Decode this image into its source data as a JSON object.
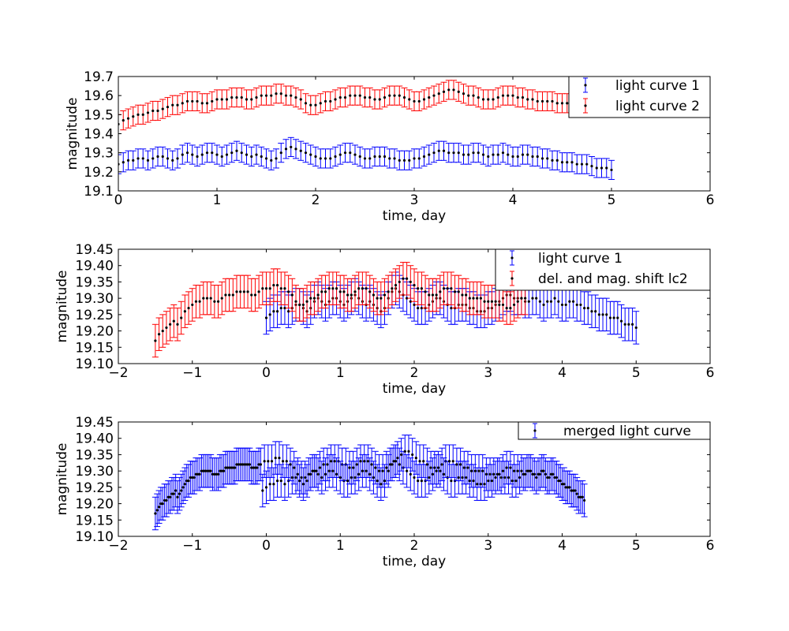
{
  "chart_data": [
    {
      "type": "scatter",
      "title": "",
      "xlabel": "time, day",
      "ylabel": "magnitude",
      "xlim": [
        0,
        6
      ],
      "ylim": [
        19.1,
        19.7
      ],
      "xticks": [
        "0",
        "1",
        "2",
        "3",
        "4",
        "5",
        "6"
      ],
      "yticks": [
        "19.1",
        "19.2",
        "19.3",
        "19.4",
        "19.5",
        "19.6",
        "19.7"
      ],
      "legend": "top-right",
      "grid": false,
      "series": [
        {
          "name": "light curve 1",
          "color": "#0000ff",
          "x_start": 0.0,
          "x_step": 0.05,
          "error": 0.05,
          "y": [
            19.24,
            19.25,
            19.26,
            19.26,
            19.27,
            19.27,
            19.26,
            19.27,
            19.28,
            19.28,
            19.27,
            19.26,
            19.27,
            19.29,
            19.3,
            19.29,
            19.28,
            19.29,
            19.3,
            19.3,
            19.29,
            19.28,
            19.29,
            19.3,
            19.31,
            19.3,
            19.29,
            19.28,
            19.29,
            19.28,
            19.27,
            19.26,
            19.27,
            19.3,
            19.32,
            19.33,
            19.32,
            19.31,
            19.3,
            19.29,
            19.28,
            19.27,
            19.27,
            19.27,
            19.28,
            19.29,
            19.3,
            19.3,
            19.29,
            19.28,
            19.27,
            19.27,
            19.28,
            19.28,
            19.28,
            19.27,
            19.27,
            19.26,
            19.26,
            19.26,
            19.27,
            19.27,
            19.28,
            19.29,
            19.3,
            19.31,
            19.31,
            19.3,
            19.3,
            19.3,
            19.29,
            19.29,
            19.3,
            19.3,
            19.29,
            19.28,
            19.29,
            19.29,
            19.3,
            19.29,
            19.28,
            19.28,
            19.29,
            19.29,
            19.28,
            19.28,
            19.27,
            19.27,
            19.26,
            19.26,
            19.25,
            19.25,
            19.25,
            19.24,
            19.24,
            19.24,
            19.23,
            19.22,
            19.22,
            19.22,
            19.21
          ]
        },
        {
          "name": "light curve 2",
          "color": "#ff0000",
          "x_start": 0.0,
          "x_step": 0.05,
          "error": 0.05,
          "y": [
            19.45,
            19.47,
            19.48,
            19.49,
            19.5,
            19.5,
            19.51,
            19.52,
            19.52,
            19.53,
            19.54,
            19.55,
            19.55,
            19.56,
            19.57,
            19.57,
            19.57,
            19.56,
            19.56,
            19.57,
            19.58,
            19.58,
            19.58,
            19.59,
            19.59,
            19.59,
            19.58,
            19.58,
            19.59,
            19.6,
            19.6,
            19.6,
            19.61,
            19.61,
            19.6,
            19.6,
            19.59,
            19.58,
            19.56,
            19.55,
            19.55,
            19.56,
            19.57,
            19.57,
            19.58,
            19.59,
            19.59,
            19.6,
            19.6,
            19.6,
            19.59,
            19.59,
            19.58,
            19.58,
            19.59,
            19.6,
            19.6,
            19.6,
            19.59,
            19.58,
            19.57,
            19.57,
            19.58,
            19.59,
            19.6,
            19.61,
            19.62,
            19.63,
            19.63,
            19.62,
            19.61,
            19.6,
            19.6,
            19.59,
            19.58,
            19.58,
            19.58,
            19.59,
            19.6,
            19.6,
            19.6,
            19.59,
            19.59,
            19.58,
            19.58,
            19.57,
            19.57,
            19.57,
            19.57,
            19.56,
            19.56,
            19.56,
            19.56
          ]
        }
      ]
    },
    {
      "type": "scatter",
      "title": "",
      "xlabel": "time, day",
      "ylabel": "magnitude",
      "xlim": [
        -2,
        6
      ],
      "ylim": [
        19.1,
        19.45
      ],
      "xticks": [
        "−2",
        "−1",
        "0",
        "1",
        "2",
        "3",
        "4",
        "5",
        "6"
      ],
      "yticks": [
        "19.10",
        "19.15",
        "19.20",
        "19.25",
        "19.30",
        "19.35",
        "19.40",
        "19.45"
      ],
      "legend": "top-right",
      "grid": false,
      "series": [
        {
          "name": "light curve 1",
          "color": "#0000ff",
          "x_start": 0.0,
          "x_step": 0.05,
          "error": 0.05,
          "y": [
            19.24,
            19.25,
            19.26,
            19.26,
            19.27,
            19.27,
            19.26,
            19.27,
            19.28,
            19.28,
            19.27,
            19.26,
            19.27,
            19.29,
            19.3,
            19.29,
            19.28,
            19.29,
            19.3,
            19.3,
            19.29,
            19.28,
            19.29,
            19.3,
            19.31,
            19.3,
            19.29,
            19.28,
            19.29,
            19.28,
            19.27,
            19.26,
            19.27,
            19.3,
            19.32,
            19.33,
            19.32,
            19.31,
            19.3,
            19.29,
            19.28,
            19.27,
            19.27,
            19.27,
            19.28,
            19.29,
            19.3,
            19.3,
            19.29,
            19.28,
            19.27,
            19.27,
            19.28,
            19.28,
            19.28,
            19.27,
            19.27,
            19.26,
            19.26,
            19.26,
            19.27,
            19.27,
            19.28,
            19.29,
            19.3,
            19.31,
            19.31,
            19.3,
            19.3,
            19.3,
            19.29,
            19.29,
            19.3,
            19.3,
            19.29,
            19.28,
            19.29,
            19.29,
            19.3,
            19.29,
            19.28,
            19.28,
            19.29,
            19.29,
            19.28,
            19.28,
            19.27,
            19.27,
            19.26,
            19.26,
            19.25,
            19.25,
            19.25,
            19.24,
            19.24,
            19.24,
            19.23,
            19.22,
            19.22,
            19.22,
            19.21
          ]
        },
        {
          "name": "del. and mag. shift lc2",
          "color": "#ff0000",
          "x_start": -1.5,
          "x_step": 0.05,
          "error": 0.05,
          "y": [
            19.17,
            19.19,
            19.2,
            19.21,
            19.22,
            19.23,
            19.22,
            19.24,
            19.26,
            19.27,
            19.28,
            19.29,
            19.29,
            19.3,
            19.3,
            19.3,
            19.29,
            19.29,
            19.3,
            19.31,
            19.31,
            19.31,
            19.32,
            19.32,
            19.32,
            19.32,
            19.31,
            19.31,
            19.32,
            19.33,
            19.33,
            19.33,
            19.34,
            19.34,
            19.33,
            19.33,
            19.32,
            19.31,
            19.29,
            19.28,
            19.28,
            19.29,
            19.3,
            19.3,
            19.31,
            19.32,
            19.32,
            19.33,
            19.33,
            19.33,
            19.32,
            19.32,
            19.31,
            19.31,
            19.32,
            19.33,
            19.33,
            19.33,
            19.32,
            19.31,
            19.3,
            19.3,
            19.31,
            19.32,
            19.33,
            19.34,
            19.35,
            19.36,
            19.36,
            19.35,
            19.34,
            19.33,
            19.33,
            19.32,
            19.31,
            19.31,
            19.31,
            19.32,
            19.33,
            19.33,
            19.33,
            19.32,
            19.32,
            19.31,
            19.31,
            19.3,
            19.3,
            19.3,
            19.3,
            19.29,
            19.29,
            19.29,
            19.29,
            19.28,
            19.28,
            19.27,
            19.27,
            19.28,
            19.29,
            19.3,
            19.3
          ]
        }
      ]
    },
    {
      "type": "scatter",
      "title": "",
      "xlabel": "time, day",
      "ylabel": "magnitude",
      "xlim": [
        -2,
        6
      ],
      "ylim": [
        19.1,
        19.45
      ],
      "xticks": [
        "−2",
        "−1",
        "0",
        "1",
        "2",
        "3",
        "4",
        "5",
        "6"
      ],
      "yticks": [
        "19.10",
        "19.15",
        "19.20",
        "19.25",
        "19.30",
        "19.35",
        "19.40",
        "19.45"
      ],
      "legend": "top-right",
      "grid": false,
      "series": [
        {
          "name": "merged light curve",
          "color": "#0000ff",
          "x_start": -1.5,
          "x_step": 0.025,
          "error": 0.05,
          "y": [
            19.17,
            19.18,
            19.19,
            19.2,
            19.2,
            19.21,
            19.21,
            19.22,
            19.22,
            19.23,
            19.23,
            19.24,
            19.22,
            19.23,
            19.24,
            19.25,
            19.26,
            19.27,
            19.27,
            19.28,
            19.28,
            19.28,
            19.29,
            19.29,
            19.29,
            19.3,
            19.3,
            19.3,
            19.3,
            19.3,
            19.3,
            19.29,
            19.29,
            19.29,
            19.29,
            19.3,
            19.3,
            19.3,
            19.31,
            19.31,
            19.31,
            19.31,
            19.31,
            19.31,
            19.32,
            19.32,
            19.32,
            19.32,
            19.32,
            19.32,
            19.32,
            19.32,
            19.31,
            19.31,
            19.31,
            19.31,
            19.32,
            19.32,
            19.24,
            19.33,
            19.25,
            19.33,
            19.26,
            19.33,
            19.26,
            19.34,
            19.27,
            19.34,
            19.27,
            19.33,
            19.26,
            19.33,
            19.27,
            19.32,
            19.28,
            19.31,
            19.28,
            19.29,
            19.27,
            19.28,
            19.26,
            19.28,
            19.27,
            19.29,
            19.29,
            19.3,
            19.3,
            19.3,
            19.29,
            19.31,
            19.28,
            19.32,
            19.29,
            19.32,
            19.3,
            19.33,
            19.3,
            19.33,
            19.29,
            19.33,
            19.28,
            19.32,
            19.27,
            19.32,
            19.27,
            19.31,
            19.28,
            19.31,
            19.28,
            19.32,
            19.29,
            19.33,
            19.3,
            19.33,
            19.3,
            19.33,
            19.29,
            19.32,
            19.28,
            19.31,
            19.27,
            19.3,
            19.26,
            19.3,
            19.27,
            19.31,
            19.3,
            19.32,
            19.32,
            19.33,
            19.33,
            19.34,
            19.32,
            19.35,
            19.31,
            19.36,
            19.3,
            19.36,
            19.29,
            19.35,
            19.28,
            19.34,
            19.27,
            19.33,
            19.27,
            19.33,
            19.27,
            19.32,
            19.28,
            19.31,
            19.29,
            19.31,
            19.3,
            19.31,
            19.3,
            19.32,
            19.29,
            19.33,
            19.28,
            19.33,
            19.27,
            19.33,
            19.27,
            19.32,
            19.28,
            19.32,
            19.28,
            19.31,
            19.28,
            19.31,
            19.27,
            19.3,
            19.27,
            19.3,
            19.26,
            19.3,
            19.26,
            19.3,
            19.26,
            19.29,
            19.27,
            19.29,
            19.27,
            19.29,
            19.28,
            19.29,
            19.29,
            19.28,
            19.3,
            19.28,
            19.31,
            19.28,
            19.31,
            19.27,
            19.3,
            19.27,
            19.3,
            19.28,
            19.3,
            19.29,
            19.29,
            19.3,
            19.3,
            19.3,
            19.29,
            19.29,
            19.28,
            19.29,
            19.29,
            19.3,
            19.3,
            19.29,
            19.28,
            19.28,
            19.29,
            19.29,
            19.28,
            19.28,
            19.27,
            19.27,
            19.26,
            19.26,
            19.25,
            19.25,
            19.25,
            19.24,
            19.24,
            19.24,
            19.23,
            19.22,
            19.22,
            19.22,
            19.21
          ]
        }
      ]
    }
  ]
}
